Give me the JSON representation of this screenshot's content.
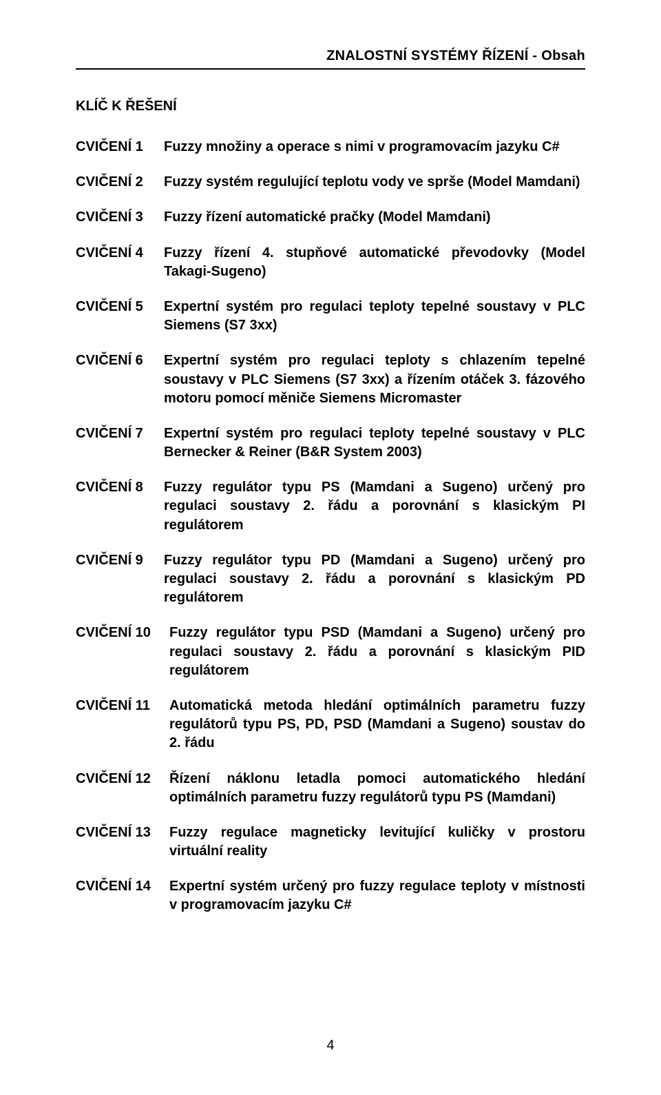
{
  "document": {
    "running_header": "ZNALOSTNÍ SYSTÉMY ŘÍZENÍ - Obsah",
    "section_heading": "KLÍČ  K ŘEŠENÍ",
    "page_number": "4",
    "heading_fontsize_pt": 15,
    "body_fontsize_pt": 15,
    "font_weight": "bold",
    "text_color": "#000000",
    "background_color": "#ffffff",
    "rule_color": "#000000",
    "entries": [
      {
        "label": "CVIČENÍ 1",
        "desc": "Fuzzy množiny a operace s nimi v programovacím jazyku C#"
      },
      {
        "label": "CVIČENÍ 2",
        "desc": "Fuzzy systém regulující teplotu vody ve sprše (Model Mamdani)"
      },
      {
        "label": "CVIČENÍ 3",
        "desc": "Fuzzy řízení automatické pračky (Model Mamdani)"
      },
      {
        "label": "CVIČENÍ 4",
        "desc": "Fuzzy řízení 4. stupňové automatické převodovky (Model Takagi-Sugeno)"
      },
      {
        "label": "CVIČENÍ 5",
        "desc": "Expertní systém pro regulaci teploty tepelné soustavy v PLC Siemens (S7 3xx)"
      },
      {
        "label": "CVIČENÍ 6",
        "desc": "Expertní systém pro regulaci teploty s chlazením tepelné soustavy v PLC Siemens (S7 3xx) a řízením otáček 3. fázového motoru pomocí měniče Siemens Micromaster"
      },
      {
        "label": "CVIČENÍ 7",
        "desc": "Expertní systém pro regulaci teploty tepelné soustavy v PLC Bernecker & Reiner (B&R System 2003)"
      },
      {
        "label": "CVIČENÍ 8",
        "desc": "Fuzzy regulátor typu PS (Mamdani a Sugeno) určený pro regulaci soustavy 2. řádu a porovnání s klasickým PI regulátorem"
      },
      {
        "label": "CVIČENÍ 9",
        "desc": "Fuzzy regulátor typu PD (Mamdani a Sugeno) určený pro regulaci soustavy 2. řádu a porovnání s klasickým PD regulátorem"
      },
      {
        "label": "CVIČENÍ 10",
        "desc": "Fuzzy regulátor typu PSD (Mamdani a Sugeno) určený pro regulaci soustavy 2. řádu a porovnání s klasickým PID regulátorem"
      },
      {
        "label": "CVIČENÍ 11",
        "desc": "Automatická metoda hledání optimálních parametru fuzzy regulátorů typu PS, PD, PSD (Mamdani a Sugeno) soustav do 2. řádu"
      },
      {
        "label": "CVIČENÍ 12",
        "desc": "Řízení náklonu letadla pomoci automatického hledání optimálních parametru fuzzy regulátorů typu PS (Mamdani)"
      },
      {
        "label": "CVIČENÍ 13",
        "desc": "Fuzzy regulace magneticky levitující kuličky v prostoru virtuální reality"
      },
      {
        "label": "CVIČENÍ 14",
        "desc": "Expertní systém určený pro fuzzy regulace teploty v místnosti v programovacím jazyku C#"
      }
    ],
    "wide_labels_from_index": 9
  }
}
